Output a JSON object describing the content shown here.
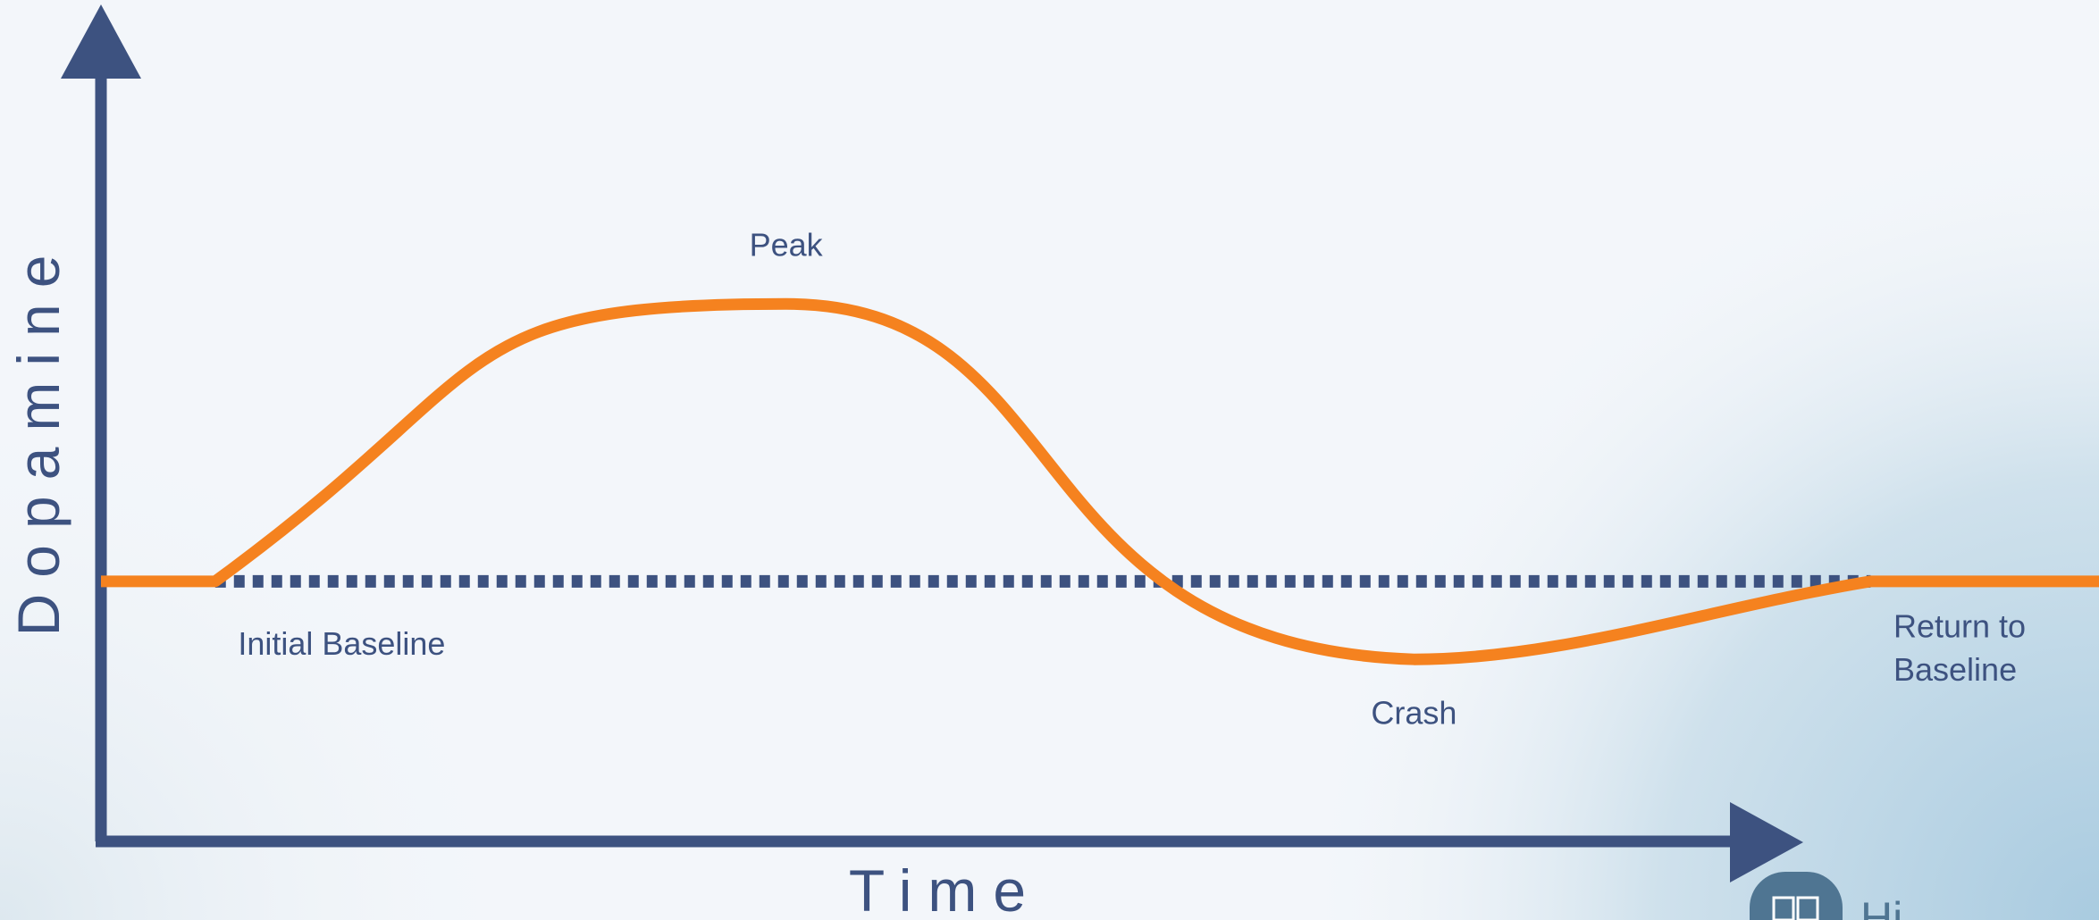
{
  "colors": {
    "axis": "#3d5280",
    "curve": "#f5821f",
    "baseline_dotted": "#3d5280",
    "text": "#3d5280",
    "background": "#f3f6fa",
    "corner_tint": "#b9d6e6"
  },
  "chart_data": {
    "type": "line",
    "title": "",
    "xlabel": "Time",
    "ylabel": "Dopamine",
    "x_ticks": false,
    "y_ticks": false,
    "grid": false,
    "baseline": {
      "style": "dotted",
      "level": 0
    },
    "series": [
      {
        "values_note_free": true,
        "points": [
          {
            "x": 0,
            "y": 0
          },
          {
            "x": 1,
            "y": 0
          },
          {
            "x": 6,
            "y": 3.2
          },
          {
            "x": 11.5,
            "y": -0.9
          },
          {
            "x": 15.5,
            "y": 0
          },
          {
            "x": 17.5,
            "y": 0
          }
        ]
      }
    ],
    "annotations": [
      {
        "text": "Initial Baseline",
        "x": 1.2,
        "y": -0.7
      },
      {
        "text": "Peak",
        "x": 6,
        "y": 3.9
      },
      {
        "text": "Crash",
        "x": 11.5,
        "y": -1.5
      },
      {
        "text": "Return to",
        "x": 15.7,
        "y": -0.5
      },
      {
        "text": "Baseline",
        "x": 15.7,
        "y": -1.0
      }
    ],
    "xlim": [
      0,
      17.5
    ],
    "ylim": [
      -3,
      6.5
    ]
  },
  "logo": {
    "text": "Hi...",
    "partial_visible": true
  }
}
